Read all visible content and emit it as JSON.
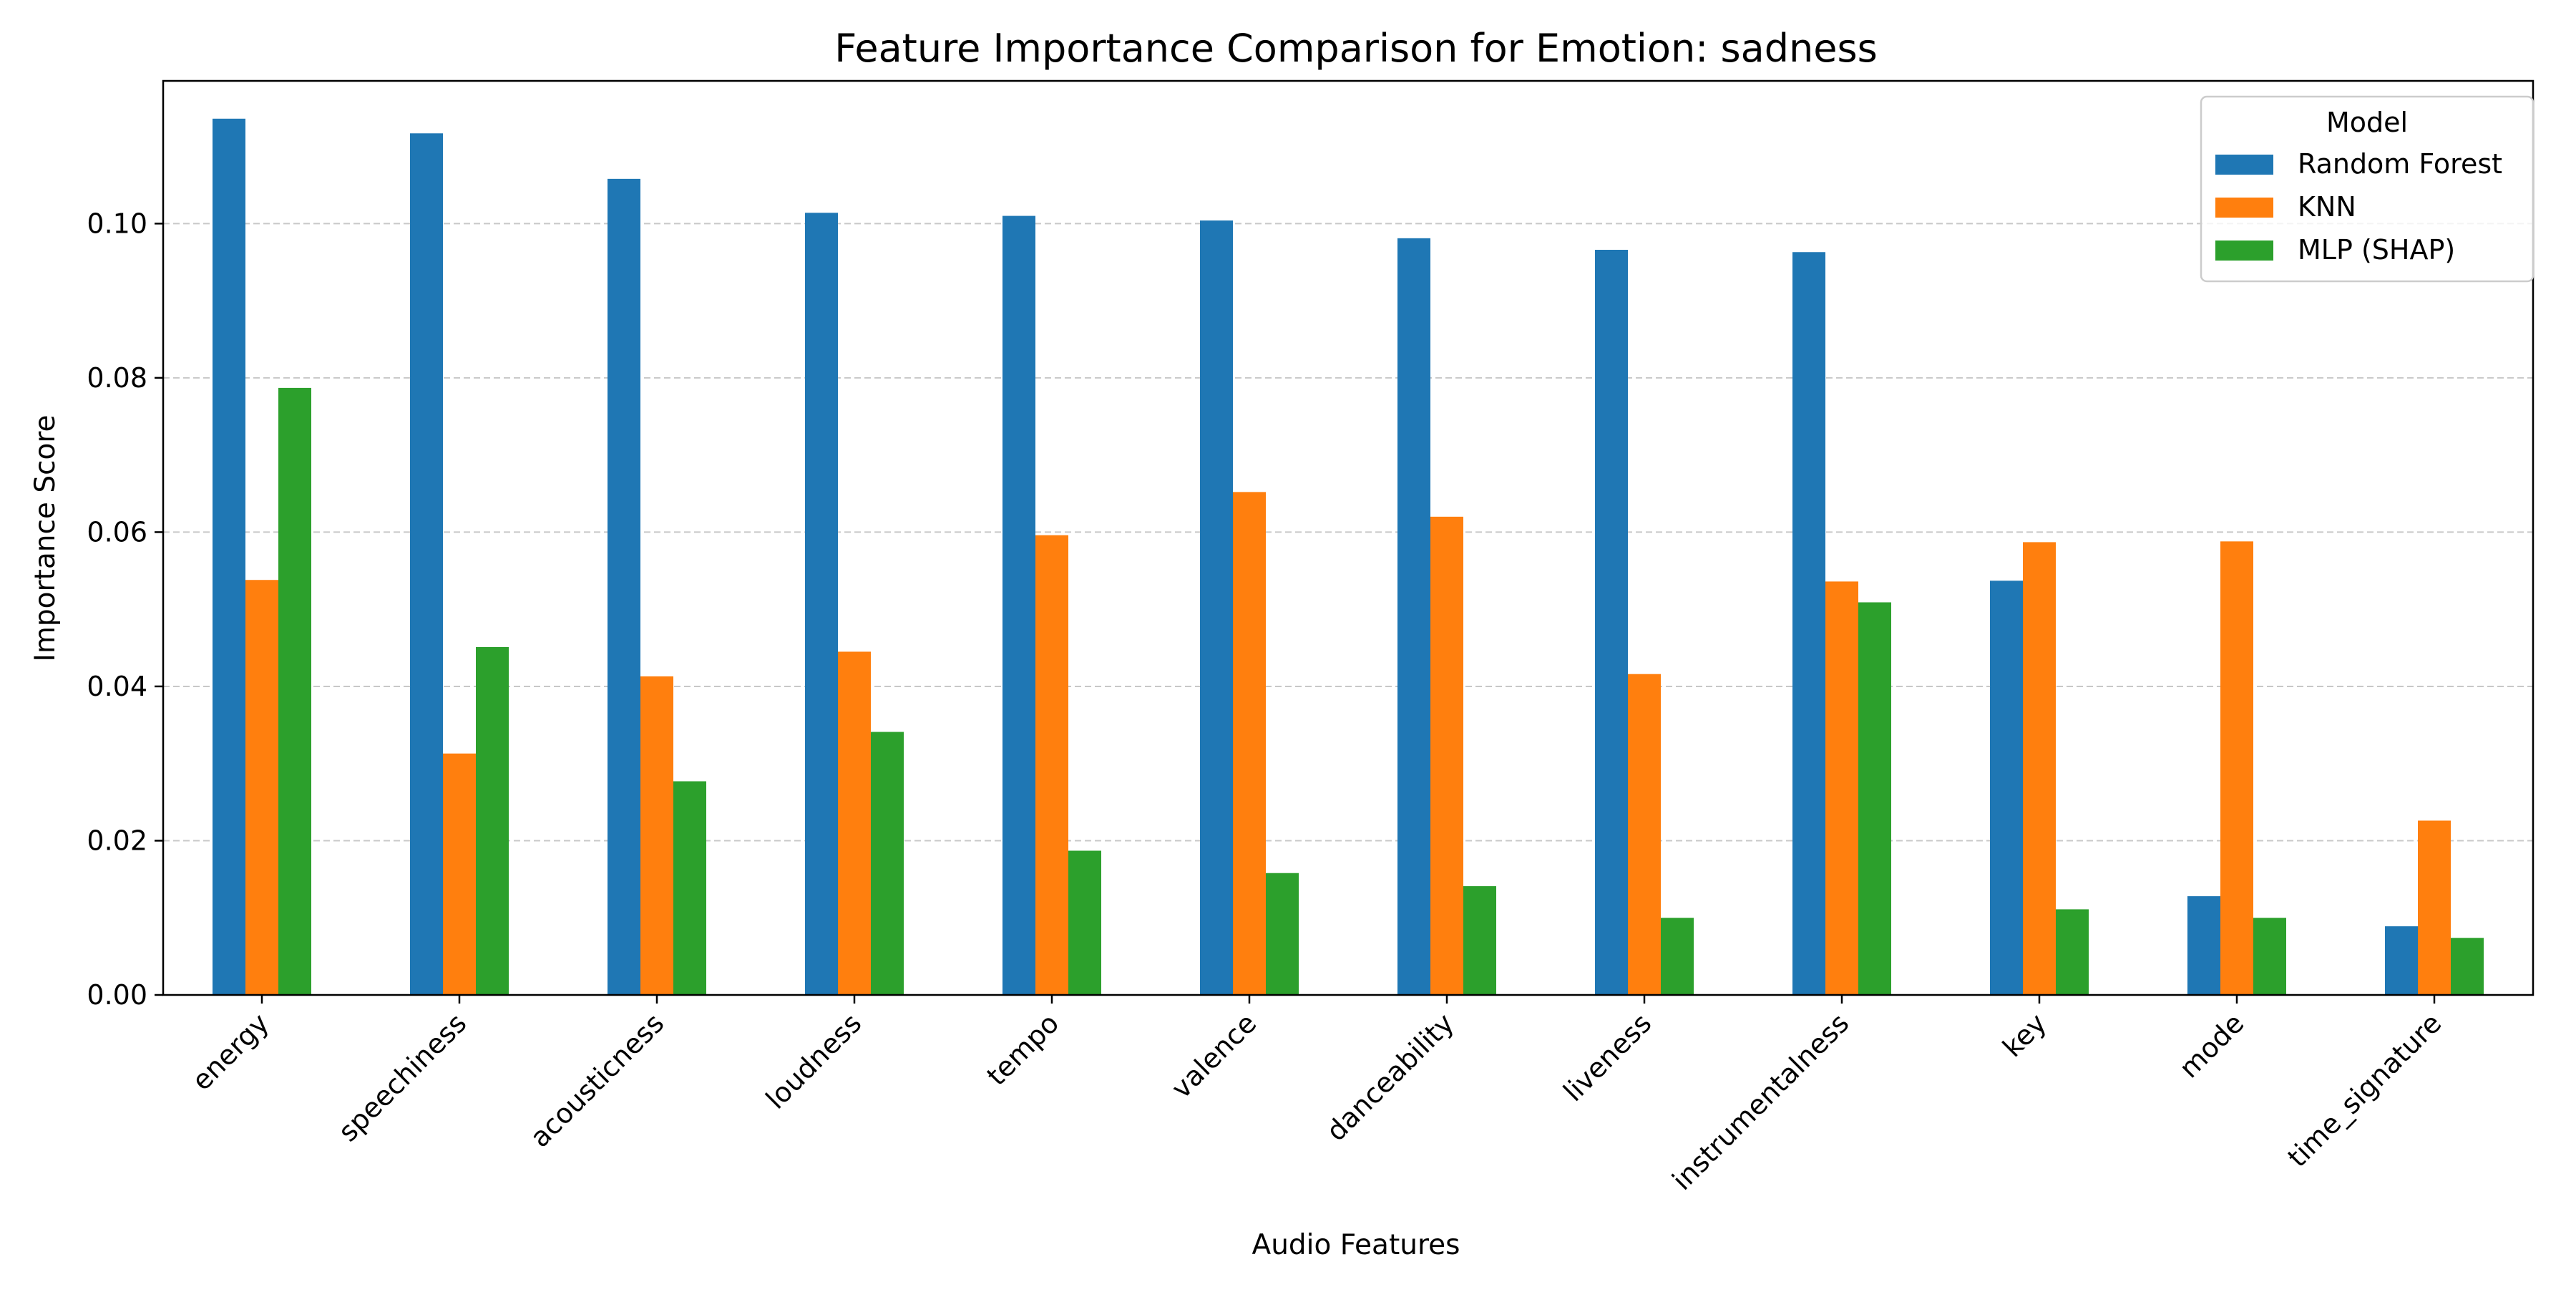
{
  "chart_data": {
    "type": "bar",
    "title": "Feature Importance Comparison for Emotion: sadness",
    "xlabel": "Audio Features",
    "ylabel": "Importance Score",
    "categories": [
      "energy",
      "speechiness",
      "acousticness",
      "loudness",
      "tempo",
      "valence",
      "danceability",
      "liveness",
      "instrumentalness",
      "key",
      "mode",
      "time_signature"
    ],
    "series": [
      {
        "name": "Random Forest",
        "color": "#1f77b4",
        "values": [
          0.1136,
          0.1117,
          0.1058,
          0.1014,
          0.101,
          0.1004,
          0.0981,
          0.0966,
          0.0963,
          0.0537,
          0.0128,
          0.0089
        ]
      },
      {
        "name": "KNN",
        "color": "#ff7f0e",
        "values": [
          0.0538,
          0.0313,
          0.0413,
          0.0445,
          0.0596,
          0.0652,
          0.062,
          0.0416,
          0.0536,
          0.0587,
          0.0588,
          0.0226
        ]
      },
      {
        "name": "MLP (SHAP)",
        "color": "#2ca02c",
        "values": [
          0.0787,
          0.0451,
          0.0277,
          0.0341,
          0.0187,
          0.0158,
          0.0141,
          0.01,
          0.0509,
          0.0111,
          0.01,
          0.0074
        ]
      }
    ],
    "ylim": [
      0,
      0.1185
    ],
    "yticks": [
      0.0,
      0.02,
      0.04,
      0.06,
      0.08,
      0.1
    ],
    "ytick_labels": [
      "0.00",
      "0.02",
      "0.04",
      "0.06",
      "0.08",
      "0.10"
    ],
    "grid": "y-dashed",
    "legend": {
      "title": "Model",
      "position": "top-right"
    }
  }
}
